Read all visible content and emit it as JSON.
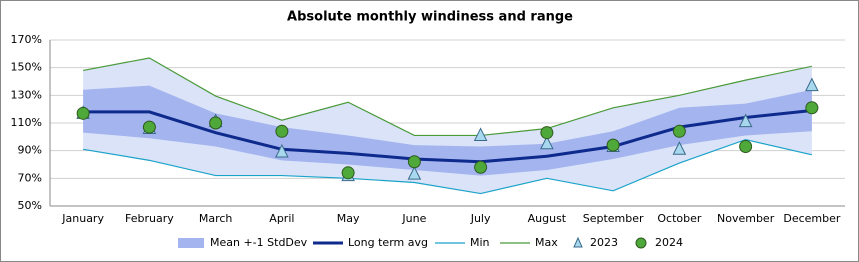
{
  "chart_data": {
    "type": "line",
    "title": "Absolute monthly windiness and range",
    "categories": [
      "January",
      "February",
      "March",
      "April",
      "May",
      "June",
      "July",
      "August",
      "September",
      "October",
      "November",
      "December"
    ],
    "ylim": [
      50,
      170
    ],
    "yticks": [
      {
        "value": 50,
        "label": "50%"
      },
      {
        "value": 70,
        "label": "70%"
      },
      {
        "value": 90,
        "label": "90%"
      },
      {
        "value": 110,
        "label": "110%"
      },
      {
        "value": 130,
        "label": "130%"
      },
      {
        "value": 150,
        "label": "150%"
      },
      {
        "value": 170,
        "label": "170%"
      }
    ],
    "grid": true,
    "range_color": "#dbe3f8",
    "legend": "bottom",
    "series": [
      {
        "name": "Mean +-1 StdDev",
        "style": "band",
        "color": "#a4b4ee",
        "upper": [
          134,
          137,
          117,
          107,
          101,
          94,
          93,
          95,
          104,
          121,
          124,
          134
        ],
        "lower": [
          103,
          99,
          93,
          83,
          80,
          76,
          72,
          76,
          84,
          94,
          101,
          104
        ]
      },
      {
        "name": "Long term avg",
        "style": "line",
        "color": "#0d2a8c",
        "width": 3,
        "values": [
          118,
          118,
          103,
          91,
          88,
          84,
          82,
          86,
          93,
          107,
          114,
          119
        ]
      },
      {
        "name": "Min",
        "style": "line",
        "color": "#1aa3c9",
        "width": 1.2,
        "values": [
          91,
          83,
          72,
          72,
          70,
          67,
          59,
          70,
          61,
          81,
          98,
          87
        ]
      },
      {
        "name": "Max",
        "style": "line",
        "color": "#4a9a3a",
        "width": 1.2,
        "values": [
          148,
          157,
          129.5,
          112,
          125,
          101,
          101,
          106,
          121,
          130,
          141,
          151
        ]
      },
      {
        "name": "2023",
        "style": "triangle",
        "color": "#a8d8ee",
        "values": [
          117,
          106,
          111,
          89,
          72,
          73,
          101,
          95,
          93,
          91,
          111,
          137
        ]
      },
      {
        "name": "2024",
        "style": "circle",
        "color": "#4fa83a",
        "values": [
          117,
          107,
          110,
          104,
          74,
          82,
          78,
          103,
          94,
          104,
          93,
          121
        ]
      }
    ]
  }
}
